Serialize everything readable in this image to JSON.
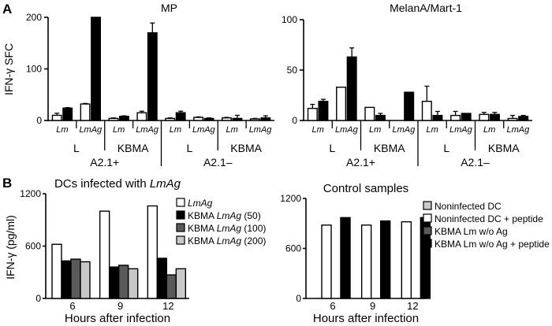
{
  "panel_labels": [
    "A",
    "B"
  ],
  "chart_data": [
    {
      "type": "bar",
      "title": "MP",
      "ylabel": "IFN-γ SFC",
      "ylim": [
        0,
        200
      ],
      "yticks": [
        0,
        100,
        200
      ],
      "subcategories": [
        "Lm",
        "LmAg",
        "Lm",
        "LmAg",
        "Lm",
        "LmAg",
        "Lm",
        "LmAg"
      ],
      "groups": [
        "L",
        "KBMA",
        "L",
        "KBMA"
      ],
      "supergroups": [
        "A2.1+",
        "A2.1–"
      ],
      "series": [
        {
          "fill": "#ffffff",
          "values": [
            10,
            32,
            4,
            15,
            4,
            6,
            5,
            3
          ],
          "errors": [
            4,
            1,
            1,
            3,
            1,
            1,
            1,
            1
          ]
        },
        {
          "fill": "#000000",
          "values": [
            24,
            200,
            8,
            170,
            15,
            4,
            4,
            5
          ],
          "errors": [
            1,
            0,
            1,
            19,
            3,
            1,
            6,
            4
          ]
        }
      ]
    },
    {
      "type": "bar",
      "title": "MelanA/Mart-1",
      "ylabel": "",
      "ylim": [
        0,
        100
      ],
      "yticks": [
        0,
        50,
        100
      ],
      "subcategories": [
        "Lm",
        "LmAg",
        "Lm",
        "LmAg",
        "Lm",
        "LmAg",
        "Lm",
        "LmAg"
      ],
      "groups": [
        "L",
        "KBMA",
        "L",
        "KBMA"
      ],
      "supergroups": [
        "A2.1+",
        "A2.1–"
      ],
      "series": [
        {
          "fill": "#ffffff",
          "values": [
            12,
            33,
            13,
            0,
            19,
            5,
            6,
            2
          ],
          "errors": [
            4,
            0.5,
            0.5,
            0,
            15,
            4,
            2,
            3
          ]
        },
        {
          "fill": "#000000",
          "values": [
            19,
            63,
            5,
            28,
            5,
            7,
            6,
            4
          ],
          "errors": [
            2,
            9,
            2,
            0,
            4,
            0.5,
            2,
            1
          ]
        }
      ]
    },
    {
      "type": "bar",
      "title": "DCs infected with ",
      "title_italic": "LmAg",
      "ylabel": "IFN-γ (pg/ml)",
      "xlabel": "Hours after infection",
      "ylim": [
        0,
        1200
      ],
      "yticks": [
        0,
        600,
        1200
      ],
      "categories": [
        "6",
        "9",
        "12"
      ],
      "legend": "right",
      "series": [
        {
          "name": "",
          "name_italic": "LmAg",
          "name_suffix": "",
          "fill": "#ffffff",
          "values": [
            620,
            1000,
            1060
          ]
        },
        {
          "name": "KBMA ",
          "name_italic": "LmAg",
          "name_suffix": " (50)",
          "fill": "#000000",
          "values": [
            430,
            360,
            460
          ]
        },
        {
          "name": "KBMA ",
          "name_italic": "LmAg",
          "name_suffix": " (100)",
          "fill": "#5a5a5a",
          "values": [
            450,
            380,
            270
          ]
        },
        {
          "name": "KBMA ",
          "name_italic": "LmAg",
          "name_suffix": " (200)",
          "fill": "#c8c8c8",
          "values": [
            420,
            340,
            340
          ]
        }
      ]
    },
    {
      "type": "bar",
      "title": "Control samples",
      "ylabel": "",
      "xlabel": "Hours after infection",
      "ylim": [
        0,
        1200
      ],
      "yticks": [
        0,
        600,
        1200
      ],
      "categories": [
        "6",
        "9",
        "12"
      ],
      "legend": "right",
      "series": [
        {
          "name": "Noninfected DC",
          "name_italic": "",
          "name_suffix": "",
          "fill": "#c8c8c8",
          "values": [
            0,
            0,
            0
          ]
        },
        {
          "name": "Noninfected DC + peptide",
          "name_italic": "",
          "name_suffix": "",
          "fill": "#ffffff",
          "values": [
            880,
            880,
            920
          ]
        },
        {
          "name": "KBMA Lm w/o Ag",
          "name_italic": "",
          "name_suffix": "",
          "fill": "#5a5a5a",
          "values": [
            0,
            0,
            0
          ]
        },
        {
          "name": "KBMA Lm w/o Ag + peptide",
          "name_italic": "",
          "name_suffix": "",
          "fill": "#000000",
          "values": [
            970,
            930,
            970
          ]
        }
      ]
    }
  ]
}
